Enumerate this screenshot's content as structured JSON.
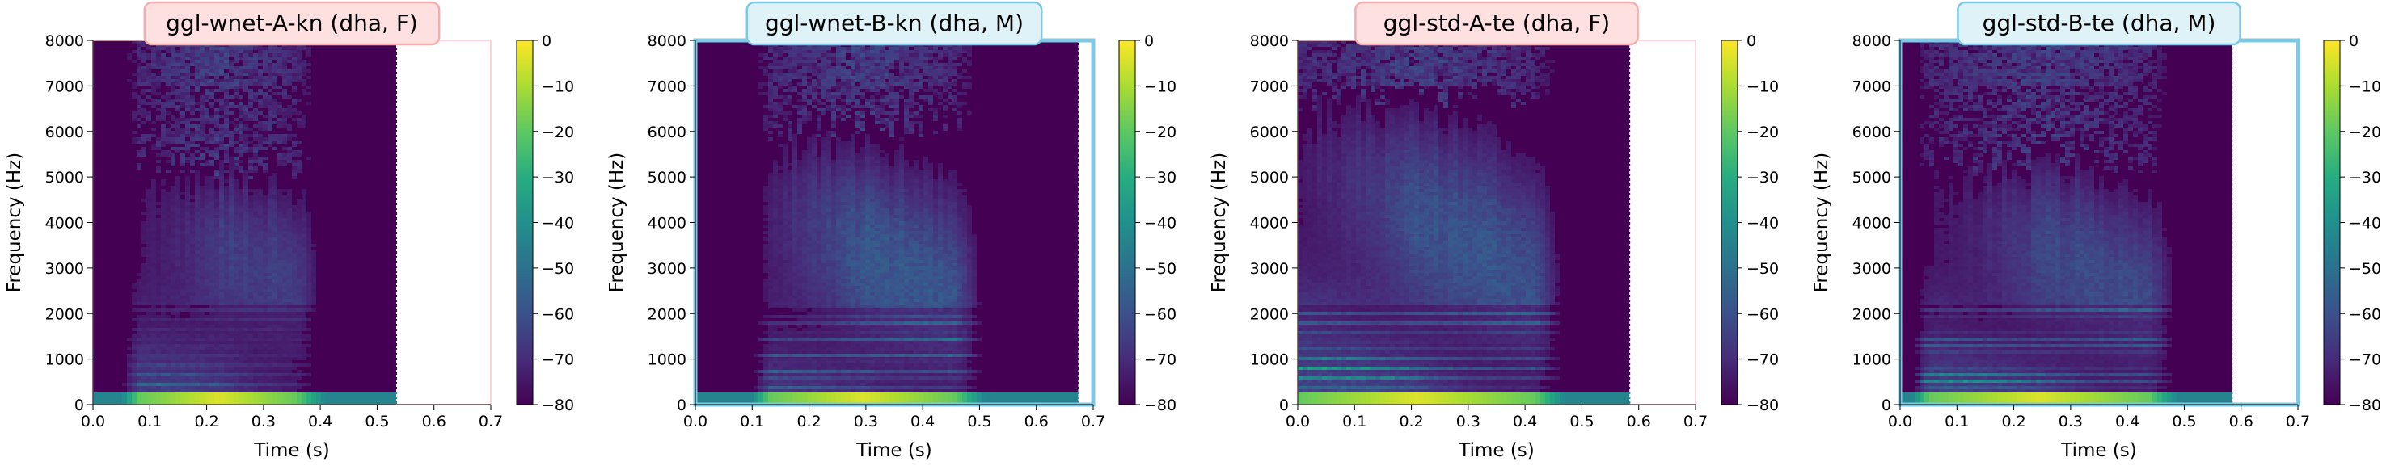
{
  "colors": {
    "female_title_bg": "#fde0df",
    "female_title_border": "#f4aeb0",
    "female_frame": "#f8c8cc",
    "male_title_bg": "#dff2f8",
    "male_title_border": "#7ec8e3",
    "male_frame": "#7ec8e3",
    "spectrogram_floor": "#440154"
  },
  "chart_data": [
    {
      "type": "heatmap",
      "title": "ggl-wnet-A-kn (dha, F)",
      "gender": "F",
      "xlabel": "Time (s)",
      "ylabel": "Frequency (Hz)",
      "xlim": [
        0.0,
        0.7
      ],
      "ylim": [
        0,
        8000
      ],
      "xticks": [
        "0.0",
        "0.1",
        "0.2",
        "0.3",
        "0.4",
        "0.5",
        "0.6",
        "0.7"
      ],
      "yticks": [
        "0",
        "1000",
        "2000",
        "3000",
        "4000",
        "5000",
        "6000",
        "7000",
        "8000"
      ],
      "audio_end_s": 0.535,
      "speech_start_s": 0.08,
      "speech_end_s": 0.36,
      "f0_hz": 210,
      "high_energy_max_hz": 3400,
      "grid": false,
      "colorbar": {
        "range": [
          -80,
          0
        ],
        "ticks": [
          "0",
          "−10",
          "−20",
          "−30",
          "−40",
          "−50",
          "−60",
          "−70",
          "−80"
        ]
      }
    },
    {
      "type": "heatmap",
      "title": "ggl-wnet-B-kn (dha, M)",
      "gender": "M",
      "xlabel": "Time (s)",
      "ylabel": "Frequency (Hz)",
      "xlim": [
        0.0,
        0.7
      ],
      "ylim": [
        0,
        8000
      ],
      "xticks": [
        "0.0",
        "0.1",
        "0.2",
        "0.3",
        "0.4",
        "0.5",
        "0.6",
        "0.7"
      ],
      "yticks": [
        "0",
        "1000",
        "2000",
        "3000",
        "4000",
        "5000",
        "6000",
        "7000",
        "8000"
      ],
      "audio_end_s": 0.675,
      "speech_start_s": 0.13,
      "speech_end_s": 0.46,
      "f0_hz": 120,
      "high_energy_max_hz": 4200,
      "grid": false,
      "colorbar": {
        "range": [
          -80,
          0
        ],
        "ticks": [
          "0",
          "−10",
          "−20",
          "−30",
          "−40",
          "−50",
          "−60",
          "−70",
          "−80"
        ]
      }
    },
    {
      "type": "heatmap",
      "title": "ggl-std-A-te (dha, F)",
      "gender": "F",
      "xlabel": "Time (s)",
      "ylabel": "Frequency (Hz)",
      "xlim": [
        0.0,
        0.7
      ],
      "ylim": [
        0,
        8000
      ],
      "xticks": [
        "0.0",
        "0.1",
        "0.2",
        "0.3",
        "0.4",
        "0.5",
        "0.6",
        "0.7"
      ],
      "yticks": [
        "0",
        "1000",
        "2000",
        "3000",
        "4000",
        "5000",
        "6000",
        "7000",
        "8000"
      ],
      "audio_end_s": 0.585,
      "speech_start_s": 0.0,
      "speech_end_s": 0.42,
      "f0_hz": 200,
      "high_energy_max_hz": 5000,
      "grid": false,
      "colorbar": {
        "range": [
          -80,
          0
        ],
        "ticks": [
          "0",
          "−10",
          "−20",
          "−30",
          "−40",
          "−50",
          "−60",
          "−70",
          "−80"
        ]
      }
    },
    {
      "type": "heatmap",
      "title": "ggl-std-B-te (dha, M)",
      "gender": "M",
      "xlabel": "Time (s)",
      "ylabel": "Frequency (Hz)",
      "xlim": [
        0.0,
        0.7
      ],
      "ylim": [
        0,
        8000
      ],
      "xticks": [
        "0.0",
        "0.1",
        "0.2",
        "0.3",
        "0.4",
        "0.5",
        "0.6",
        "0.7"
      ],
      "yticks": [
        "0",
        "1000",
        "2000",
        "3000",
        "4000",
        "5000",
        "6000",
        "7000",
        "8000"
      ],
      "audio_end_s": 0.585,
      "speech_start_s": 0.05,
      "speech_end_s": 0.44,
      "f0_hz": 130,
      "high_energy_max_hz": 3600,
      "grid": false,
      "colorbar": {
        "range": [
          -80,
          0
        ],
        "ticks": [
          "0",
          "−10",
          "−20",
          "−30",
          "−40",
          "−50",
          "−60",
          "−70",
          "−80"
        ]
      }
    }
  ]
}
